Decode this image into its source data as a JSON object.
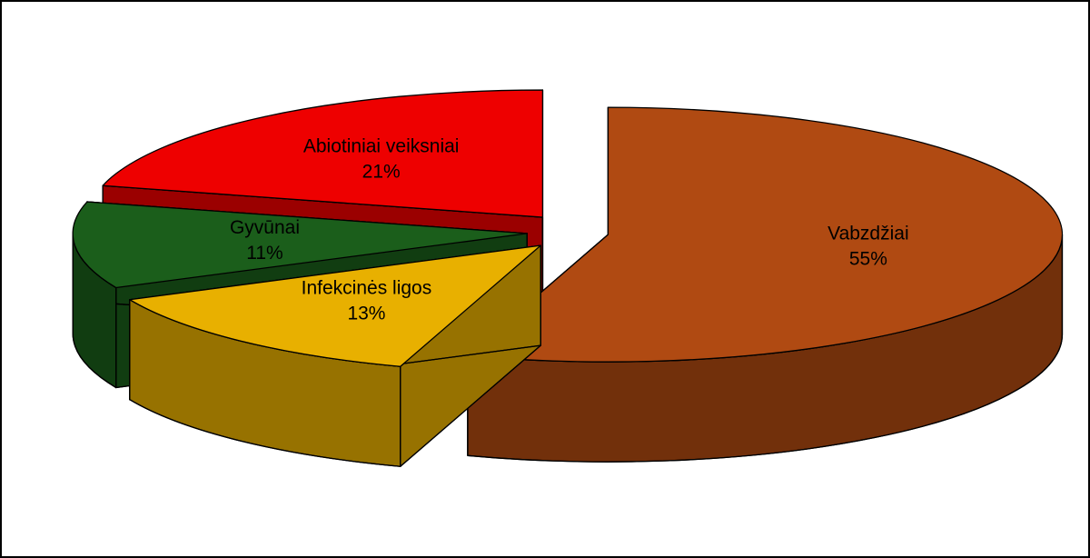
{
  "chart_data": {
    "type": "pie3d",
    "categories": [
      "Vabzdžiai",
      "Infekcinės ligos",
      "Gyvūnai",
      "Abiotiniai veiksniai"
    ],
    "values": [
      55,
      13,
      11,
      21
    ],
    "value_labels": [
      "55%",
      "13%",
      "11%",
      "21%"
    ],
    "colors": [
      "#b04a12",
      "#e8b000",
      "#1b5e1b",
      "#ee0000"
    ]
  }
}
